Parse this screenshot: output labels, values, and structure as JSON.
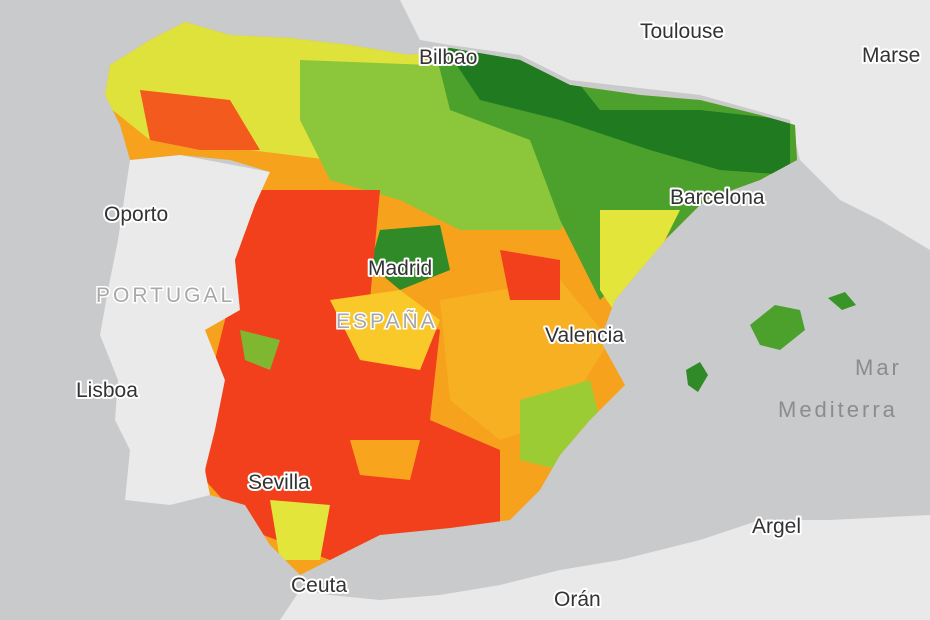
{
  "labels": {
    "toulouse": "Toulouse",
    "marseille": "Marse",
    "bilbao": "Bilbao",
    "barcelona": "Barcelona",
    "oporto": "Oporto",
    "portugal": "PORTUGAL",
    "madrid": "Madrid",
    "espana": "ESPAÑA",
    "valencia": "Valencia",
    "lisboa": "Lisboa",
    "sea_1": "Mar",
    "sea_2": "Mediterra",
    "sevilla": "Sevilla",
    "argel": "Argel",
    "ceuta": "Ceuta",
    "oran": "Orán"
  }
}
